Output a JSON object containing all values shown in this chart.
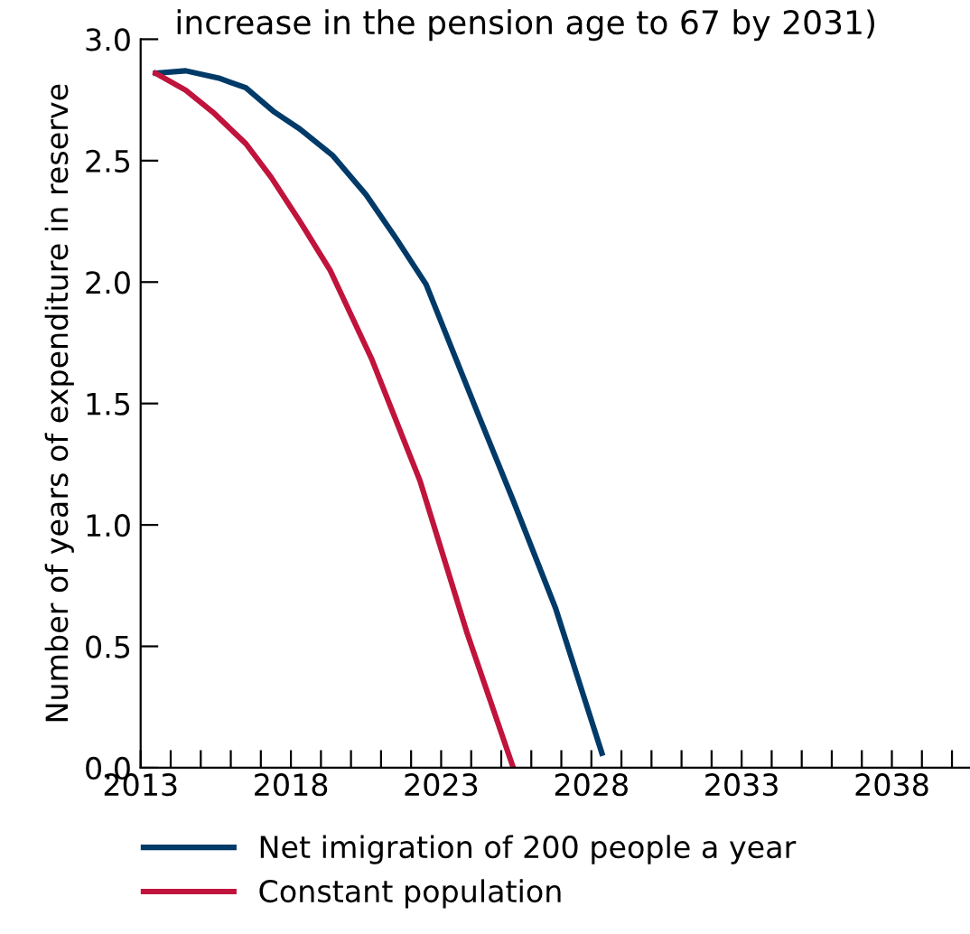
{
  "chart_data": {
    "type": "line",
    "title": "increase in the pension age to 67 by 2031)",
    "ylabel": "Number of years of expenditure in reserve",
    "xlim": [
      2013,
      2040.6
    ],
    "ylim": [
      0,
      3
    ],
    "xticks": [
      {
        "value": 2013,
        "label": "2013"
      },
      {
        "value": 2014,
        "label": null
      },
      {
        "value": 2015,
        "label": null
      },
      {
        "value": 2016,
        "label": null
      },
      {
        "value": 2017,
        "label": null
      },
      {
        "value": 2018,
        "label": "2018"
      },
      {
        "value": 2019,
        "label": null
      },
      {
        "value": 2020,
        "label": null
      },
      {
        "value": 2021,
        "label": null
      },
      {
        "value": 2022,
        "label": null
      },
      {
        "value": 2023,
        "label": "2023"
      },
      {
        "value": 2024,
        "label": null
      },
      {
        "value": 2025,
        "label": null
      },
      {
        "value": 2026,
        "label": null
      },
      {
        "value": 2027,
        "label": null
      },
      {
        "value": 2028,
        "label": "2028"
      },
      {
        "value": 2029,
        "label": null
      },
      {
        "value": 2030,
        "label": null
      },
      {
        "value": 2031,
        "label": null
      },
      {
        "value": 2032,
        "label": null
      },
      {
        "value": 2033,
        "label": "2033"
      },
      {
        "value": 2034,
        "label": null
      },
      {
        "value": 2035,
        "label": null
      },
      {
        "value": 2036,
        "label": null
      },
      {
        "value": 2037,
        "label": null
      },
      {
        "value": 2038,
        "label": "2038"
      },
      {
        "value": 2039,
        "label": null
      },
      {
        "value": 2040,
        "label": null
      }
    ],
    "yticks": [
      {
        "value": 0,
        "label": "0.0"
      },
      0.5,
      {
        "value": 1,
        "label": "1.0"
      },
      1.5,
      {
        "value": 2,
        "label": "2.0"
      },
      2.5,
      {
        "value": 3,
        "label": "3.0"
      }
    ],
    "grid": false,
    "legend": "bottom",
    "line_style": "solid",
    "marker": "none",
    "series": [
      {
        "name": "Net imigration of 200 people a year",
        "color": "#003a68",
        "x": [
          2013.5,
          2014.5,
          2015.6,
          2016.5,
          2017.45,
          2018.3,
          2019.4,
          2020.5,
          2021.5,
          2022.5,
          2024.25,
          2025.4,
          2026.8,
          2028.35
        ],
        "values": [
          2.86,
          2.87,
          2.84,
          2.8,
          2.7,
          2.63,
          2.52,
          2.36,
          2.18,
          1.99,
          1.45,
          1.1,
          0.66,
          0.06
        ]
      },
      {
        "name": "Constant population",
        "color": "#c0143c",
        "x": [
          2013.5,
          2014.5,
          2015.4,
          2016.5,
          2017.35,
          2018.3,
          2019.3,
          2020.7,
          2022.3,
          2023.85,
          2025.4
        ],
        "values": [
          2.86,
          2.79,
          2.7,
          2.57,
          2.43,
          2.25,
          2.05,
          1.68,
          1.18,
          0.56,
          0.0
        ]
      }
    ]
  }
}
